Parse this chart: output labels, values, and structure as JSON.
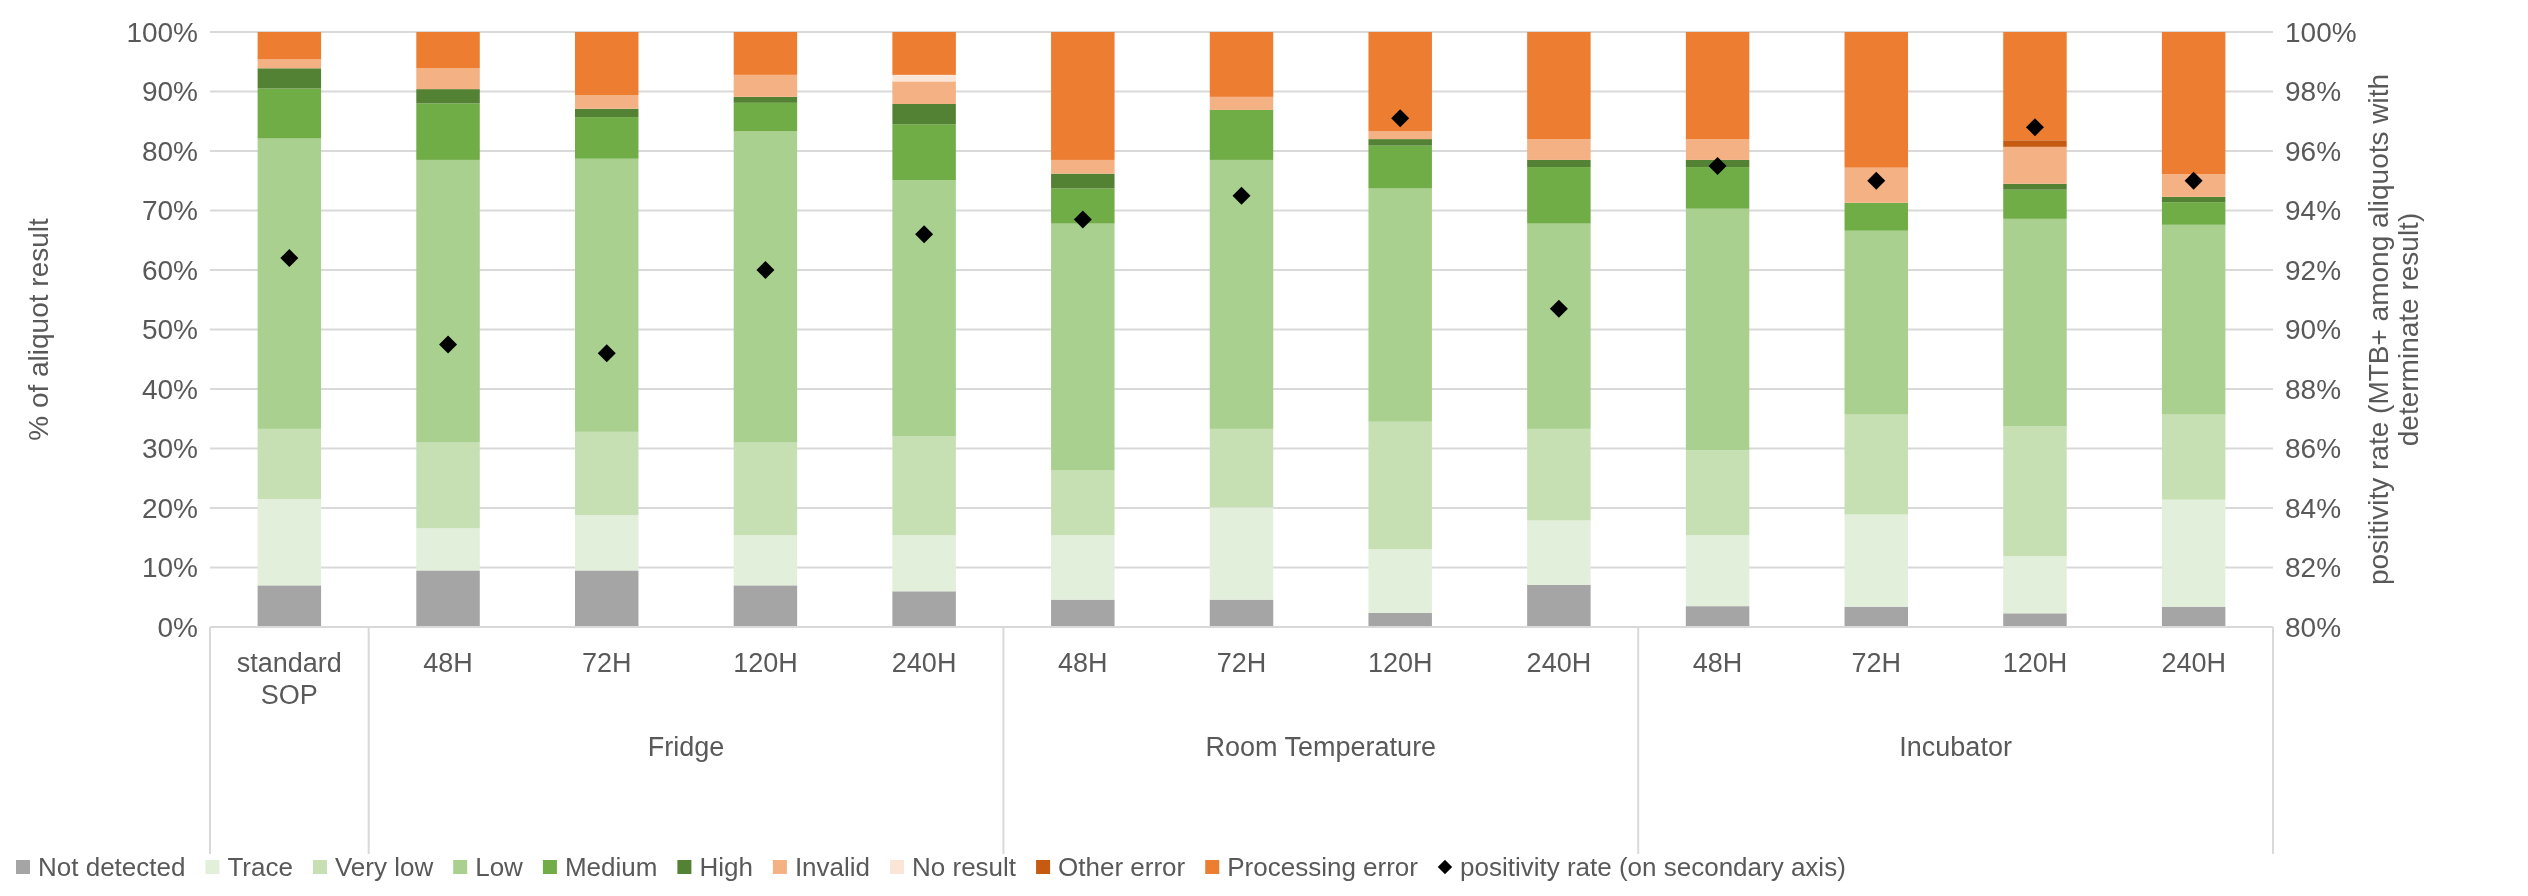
{
  "chart_data": {
    "type": "bar",
    "stacked": true,
    "ylabel": "% of aliquot result",
    "y2label": "positivity rate (MTB+ among aliquots with determinate result)",
    "categories": [
      "standard SOP",
      "48H",
      "72H",
      "120H",
      "240H",
      "48H",
      "72H",
      "120H",
      "240H",
      "48H",
      "72H",
      "120H",
      "240H"
    ],
    "annotations": [
      "Fridge",
      "Room Temperature",
      "Incubator"
    ],
    "ylim": [
      0,
      100
    ],
    "yticks": [
      {
        "value": 0,
        "label": "0%"
      },
      {
        "value": 10,
        "label": "10%"
      },
      {
        "value": 20,
        "label": "20%"
      },
      {
        "value": 30,
        "label": "30%"
      },
      {
        "value": 40,
        "label": "40%"
      },
      {
        "value": 50,
        "label": "50%"
      },
      {
        "value": 60,
        "label": "60%"
      },
      {
        "value": 70,
        "label": "70%"
      },
      {
        "value": 80,
        "label": "80%"
      },
      {
        "value": 90,
        "label": "90%"
      },
      {
        "value": 100,
        "label": "100%"
      }
    ],
    "y2lim": [
      80,
      100
    ],
    "y2ticks": [
      {
        "value": 80,
        "label": "80%"
      },
      {
        "value": 82,
        "label": "82%"
      },
      {
        "value": 84,
        "label": "84%"
      },
      {
        "value": 86,
        "label": "86%"
      },
      {
        "value": 88,
        "label": "88%"
      },
      {
        "value": 90,
        "label": "90%"
      },
      {
        "value": 92,
        "label": "92%"
      },
      {
        "value": 94,
        "label": "94%"
      },
      {
        "value": 96,
        "label": "96%"
      },
      {
        "value": 98,
        "label": "98%"
      },
      {
        "value": 100,
        "label": "100%"
      }
    ],
    "grid": "y",
    "legend": "bottom",
    "series": [
      {
        "name": "Not detected",
        "color": "#a5a5a5",
        "values": [
          7.0,
          9.5,
          9.5,
          7.0,
          6.0,
          4.6,
          4.6,
          2.4,
          7.1,
          3.5,
          3.4,
          2.3,
          3.4
        ]
      },
      {
        "name": "Trace",
        "color": "#e2efda",
        "values": [
          14.5,
          7.1,
          9.3,
          8.4,
          9.4,
          10.8,
          15.5,
          10.7,
          10.8,
          11.9,
          15.5,
          9.6,
          18.0
        ]
      },
      {
        "name": "Very low",
        "color": "#c6e0b4",
        "values": [
          11.8,
          14.4,
          14.0,
          15.6,
          16.7,
          10.9,
          13.2,
          21.4,
          15.4,
          14.3,
          16.8,
          21.8,
          14.3
        ]
      },
      {
        "name": "Low",
        "color": "#a9d08e",
        "values": [
          48.8,
          47.5,
          45.9,
          52.3,
          43.0,
          41.5,
          45.2,
          39.2,
          34.5,
          40.6,
          30.9,
          34.9,
          31.9
        ]
      },
      {
        "name": "Medium",
        "color": "#70ad47",
        "values": [
          8.4,
          9.5,
          7.0,
          4.8,
          9.4,
          5.9,
          8.4,
          7.2,
          9.5,
          7.0,
          4.7,
          4.9,
          3.8
        ]
      },
      {
        "name": "High",
        "color": "#548235",
        "values": [
          3.4,
          2.4,
          1.4,
          1.0,
          3.4,
          2.5,
          0,
          1.1,
          1.2,
          1.2,
          0,
          1.0,
          0.9
        ]
      },
      {
        "name": "Invalid",
        "color": "#f4b183",
        "values": [
          1.5,
          3.5,
          2.3,
          3.7,
          3.8,
          2.3,
          2.2,
          1.3,
          3.5,
          3.5,
          5.9,
          6.2,
          3.8
        ]
      },
      {
        "name": "No result",
        "color": "#fbe5d6",
        "values": [
          0,
          0,
          0,
          0,
          1.1,
          0,
          0,
          0,
          0,
          0,
          0,
          0,
          0
        ]
      },
      {
        "name": "Other error",
        "color": "#c55a11",
        "values": [
          0,
          0,
          0,
          0,
          0,
          0,
          0,
          0,
          0,
          0,
          0,
          1.1,
          0
        ]
      },
      {
        "name": "Processing error",
        "color": "#ed7d31",
        "values": [
          4.6,
          6.1,
          10.6,
          7.2,
          7.2,
          21.5,
          10.9,
          16.7,
          18.0,
          18.0,
          22.8,
          18.2,
          23.9
        ]
      },
      {
        "name": "positivity rate (on secondary axis)",
        "type": "scatter",
        "axis": "y2",
        "marker": "diamond",
        "color": "#000000",
        "values": [
          92.4,
          89.5,
          89.2,
          92.0,
          93.2,
          93.7,
          94.5,
          97.1,
          90.7,
          95.5,
          95.0,
          96.8,
          95.0
        ]
      }
    ]
  }
}
